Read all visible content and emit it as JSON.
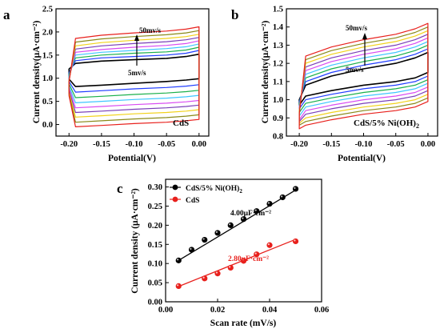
{
  "chart_data": [
    {
      "panel": "a",
      "type": "line",
      "sample_label": "CdS",
      "xlabel": "Potential(V)",
      "ylabel": "Current density(μA·cm⁻²)",
      "xlim": [
        -0.22,
        0.015
      ],
      "ylim": [
        -0.25,
        2.5
      ],
      "xticks": [
        -0.2,
        -0.15,
        -0.1,
        -0.05,
        0.0
      ],
      "yticks": [
        0.0,
        0.5,
        1.0,
        1.5,
        2.0,
        2.5
      ],
      "scan_rates_note": {
        "top": "50mv/s",
        "bottom": "5mv/s"
      },
      "series": [
        {
          "color": "#000000",
          "anodic": [
            1.2,
            1.32,
            1.37,
            1.4,
            1.43,
            1.47,
            1.52,
            1.32
          ],
          "cathodic": [
            0.98,
            0.82,
            0.85,
            0.89,
            0.93,
            0.96,
            0.99,
            1.06
          ]
        },
        {
          "color": "#1f3cff",
          "anodic": [
            1.12,
            1.38,
            1.44,
            1.47,
            1.5,
            1.54,
            1.6,
            1.36
          ],
          "cathodic": [
            0.93,
            0.7,
            0.73,
            0.77,
            0.8,
            0.83,
            0.86,
            1.0
          ]
        },
        {
          "color": "#1ab04b",
          "anodic": [
            1.08,
            1.44,
            1.5,
            1.54,
            1.57,
            1.61,
            1.67,
            1.4
          ],
          "cathodic": [
            0.88,
            0.58,
            0.61,
            0.65,
            0.68,
            0.71,
            0.74,
            0.95
          ]
        },
        {
          "color": "#3fc6ff",
          "anodic": [
            1.04,
            1.5,
            1.56,
            1.6,
            1.64,
            1.68,
            1.74,
            1.44
          ],
          "cathodic": [
            0.83,
            0.47,
            0.5,
            0.54,
            0.57,
            0.6,
            0.63,
            0.9
          ]
        },
        {
          "color": "#d94bf2",
          "anodic": [
            1.0,
            1.56,
            1.62,
            1.67,
            1.71,
            1.75,
            1.81,
            1.48
          ],
          "cathodic": [
            0.78,
            0.36,
            0.39,
            0.43,
            0.46,
            0.49,
            0.52,
            0.85
          ]
        },
        {
          "color": "#7a3fb8",
          "anodic": [
            0.98,
            1.63,
            1.7,
            1.75,
            1.79,
            1.83,
            1.88,
            1.52
          ],
          "cathodic": [
            0.74,
            0.26,
            0.29,
            0.33,
            0.36,
            0.39,
            0.42,
            0.8
          ]
        },
        {
          "color": "#f2d21b",
          "anodic": [
            0.96,
            1.7,
            1.77,
            1.82,
            1.86,
            1.9,
            1.95,
            1.56
          ],
          "cathodic": [
            0.7,
            0.16,
            0.19,
            0.23,
            0.26,
            0.29,
            0.32,
            0.76
          ]
        },
        {
          "color": "#8a8a1a",
          "anodic": [
            0.94,
            1.78,
            1.85,
            1.9,
            1.94,
            1.98,
            2.03,
            1.6
          ],
          "cathodic": [
            0.66,
            0.05,
            0.08,
            0.12,
            0.15,
            0.18,
            0.21,
            0.72
          ]
        },
        {
          "color": "#e8201c",
          "anodic": [
            0.92,
            1.86,
            1.93,
            1.98,
            2.02,
            2.06,
            2.11,
            1.64
          ],
          "cathodic": [
            0.62,
            -0.05,
            -0.02,
            0.02,
            0.05,
            0.08,
            0.11,
            0.68
          ]
        }
      ]
    },
    {
      "panel": "b",
      "type": "line",
      "sample_label": "CdS/5% Ni(OH)",
      "sample_label_sub": "2",
      "xlabel": "Potential(V)",
      "ylabel": "Current density(μA·cm⁻²)",
      "xlim": [
        -0.22,
        0.015
      ],
      "ylim": [
        0.8,
        1.5
      ],
      "xticks": [
        -0.2,
        -0.15,
        -0.1,
        -0.05,
        0.0
      ],
      "yticks": [
        0.8,
        0.9,
        1.0,
        1.1,
        1.2,
        1.3,
        1.4,
        1.5
      ],
      "scan_rates_note": {
        "top": "50mv/s",
        "bottom": "5mv/s"
      },
      "series": [
        {
          "color": "#000000",
          "anodic": [
            1.0,
            1.08,
            1.13,
            1.17,
            1.2,
            1.23,
            1.26,
            1.22
          ],
          "cathodic": [
            0.97,
            1.02,
            1.05,
            1.08,
            1.1,
            1.12,
            1.15,
            1.2
          ]
        },
        {
          "color": "#1f3cff",
          "anodic": [
            0.99,
            1.1,
            1.15,
            1.19,
            1.22,
            1.25,
            1.28,
            1.23
          ],
          "cathodic": [
            0.95,
            1.0,
            1.03,
            1.06,
            1.08,
            1.1,
            1.13,
            1.21
          ]
        },
        {
          "color": "#1ab04b",
          "anodic": [
            0.98,
            1.12,
            1.17,
            1.21,
            1.24,
            1.27,
            1.3,
            1.24
          ],
          "cathodic": [
            0.93,
            0.98,
            1.01,
            1.04,
            1.06,
            1.08,
            1.11,
            1.22
          ]
        },
        {
          "color": "#3fc6ff",
          "anodic": [
            0.97,
            1.14,
            1.19,
            1.23,
            1.26,
            1.29,
            1.32,
            1.25
          ],
          "cathodic": [
            0.91,
            0.96,
            0.99,
            1.02,
            1.04,
            1.06,
            1.09,
            1.23
          ]
        },
        {
          "color": "#d94bf2",
          "anodic": [
            0.96,
            1.16,
            1.21,
            1.25,
            1.28,
            1.31,
            1.34,
            1.26
          ],
          "cathodic": [
            0.89,
            0.94,
            0.97,
            1.0,
            1.02,
            1.04,
            1.07,
            1.24
          ]
        },
        {
          "color": "#7a3fb8",
          "anodic": [
            0.95,
            1.18,
            1.23,
            1.27,
            1.3,
            1.33,
            1.36,
            1.27
          ],
          "cathodic": [
            0.88,
            0.92,
            0.95,
            0.98,
            1.0,
            1.02,
            1.05,
            1.25
          ]
        },
        {
          "color": "#f2d21b",
          "anodic": [
            0.94,
            1.2,
            1.25,
            1.29,
            1.32,
            1.35,
            1.38,
            1.28
          ],
          "cathodic": [
            0.87,
            0.9,
            0.93,
            0.96,
            0.98,
            1.0,
            1.03,
            1.26
          ]
        },
        {
          "color": "#8a8a1a",
          "anodic": [
            0.93,
            1.22,
            1.27,
            1.31,
            1.34,
            1.37,
            1.4,
            1.29
          ],
          "cathodic": [
            0.86,
            0.88,
            0.91,
            0.94,
            0.96,
            0.98,
            1.01,
            1.27
          ]
        },
        {
          "color": "#e8201c",
          "anodic": [
            0.92,
            1.24,
            1.29,
            1.33,
            1.36,
            1.39,
            1.42,
            1.3
          ],
          "cathodic": [
            0.84,
            0.86,
            0.89,
            0.92,
            0.94,
            0.96,
            0.99,
            1.28
          ]
        }
      ]
    },
    {
      "panel": "c",
      "type": "scatter",
      "xlabel": "Scan rate (mV/s)",
      "ylabel": "Current density (μA·cm⁻²)",
      "xlim": [
        0.0,
        0.06
      ],
      "ylim": [
        0.0,
        0.32
      ],
      "xticks": [
        0.0,
        0.02,
        0.04,
        0.06
      ],
      "yticks": [
        0.0,
        0.05,
        0.1,
        0.15,
        0.2,
        0.25,
        0.3
      ],
      "series": [
        {
          "name": "CdS/5% Ni(OH)",
          "name_sub": "2",
          "color": "#000000",
          "slope_label": "4.00μF·cm⁻²",
          "x": [
            0.005,
            0.01,
            0.015,
            0.02,
            0.025,
            0.03,
            0.035,
            0.04,
            0.045,
            0.05
          ],
          "values": [
            0.108,
            0.136,
            0.162,
            0.18,
            0.2,
            0.216,
            0.237,
            0.256,
            0.273,
            0.295
          ],
          "fit": {
            "x": [
              0.005,
              0.05
            ],
            "y": [
              0.108,
              0.292
            ]
          }
        },
        {
          "name": "CdS",
          "color": "#e8201c",
          "slope_label": "2.80μF·cm⁻²",
          "x": [
            0.005,
            0.015,
            0.02,
            0.025,
            0.03,
            0.035,
            0.04,
            0.05
          ],
          "values": [
            0.041,
            0.061,
            0.074,
            0.089,
            0.107,
            0.124,
            0.148,
            0.158
          ],
          "fit": {
            "x": [
              0.005,
              0.05
            ],
            "y": [
              0.04,
              0.163
            ]
          }
        }
      ]
    }
  ]
}
